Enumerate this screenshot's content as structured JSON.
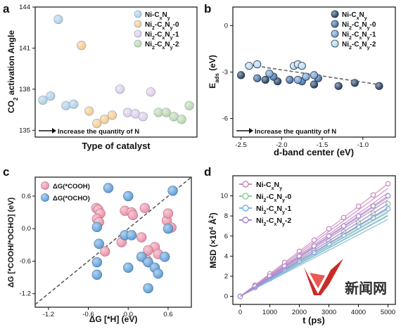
{
  "watermark": {
    "logo_text": "新闻网"
  },
  "colors": {
    "pa": [
      "#a8cde6",
      "#f5c887",
      "#dccbed",
      "#b7d7a8"
    ],
    "pb": [
      "#1d3a5c",
      "#3a67a3",
      "#6d9bd0",
      "#b6d6ef"
    ],
    "pc_cooh": "#e98fa6",
    "pc_ocho": "#5b9bd5",
    "pd": [
      "#d7a6cf",
      "#a8d8b0",
      "#98c8e8",
      "#b9a2d8"
    ]
  },
  "chart_data": [
    {
      "panel": "a",
      "type": "scatter",
      "xlabel": "Type of catalyst",
      "ylabel_parts": {
        "pre": "CO",
        "sub": "2",
        "post": " activation Angle"
      },
      "ylim": [
        134.5,
        144
      ],
      "yticks": [
        135,
        138,
        141,
        144
      ],
      "arrow_label": "Increase the quantity of N",
      "series": [
        {
          "name": "Ni-CxNy",
          "label_parts": [
            "Ni-C",
            "x",
            "N",
            "y",
            ""
          ],
          "x": [
            1,
            2,
            3,
            4,
            5
          ],
          "y": [
            137.2,
            137.5,
            143.1,
            136.8,
            136.9
          ]
        },
        {
          "name": "Ni2-CxNy-0",
          "label_parts": [
            "Ni",
            "2",
            "-C",
            "x",
            "N",
            "y",
            "-0"
          ],
          "x": [
            6,
            7,
            8,
            9,
            10
          ],
          "y": [
            141.2,
            136.4,
            135.5,
            135.8,
            136.1
          ]
        },
        {
          "name": "Ni2-CxNy-1",
          "label_parts": [
            "Ni",
            "2",
            "-C",
            "x",
            "N",
            "y",
            "-1"
          ],
          "x": [
            11,
            12,
            13,
            14,
            15
          ],
          "y": [
            138.0,
            136.3,
            136.2,
            136.0,
            137.8
          ]
        },
        {
          "name": "Ni2-CxNy-2",
          "label_parts": [
            "Ni",
            "2",
            "-C",
            "x",
            "N",
            "y",
            "-2"
          ],
          "x": [
            16,
            17,
            18,
            19,
            20
          ],
          "y": [
            136.3,
            136.3,
            136.0,
            135.8,
            136.8
          ]
        }
      ]
    },
    {
      "panel": "b",
      "type": "scatter",
      "xlabel": "d-band center (eV)",
      "ylabel_main": "E",
      "ylabel_sub": "ads",
      "ylabel_unit": " (eV)",
      "xlim": [
        -2.6,
        -0.6
      ],
      "ylim": [
        -7.2,
        1.2
      ],
      "xticks": [
        -2.5,
        -2.0,
        -1.5,
        -1.0
      ],
      "xtick_labels": [
        "-2.5",
        "-2.0",
        "-1.5",
        "-1.0"
      ],
      "yticks": [
        -6,
        -3,
        0
      ],
      "ytick_labels": [
        "-6",
        "-3",
        "0"
      ],
      "arrow_label": "Increase the quantity of N",
      "fit": {
        "x": [
          -2.45,
          -0.75
        ],
        "y": [
          -2.5,
          -3.85
        ]
      },
      "series": [
        {
          "name": "Ni-CxNy",
          "label_parts": [
            "Ni-C",
            "x",
            "N",
            "y",
            ""
          ],
          "x": [
            -2.5,
            -2.2,
            -2.05,
            -1.6,
            -1.3,
            -1.1,
            -0.8
          ],
          "y": [
            -3.2,
            -3.5,
            -3.6,
            -3.8,
            -3.9,
            -3.7,
            -3.9
          ]
        },
        {
          "name": "Ni2-CxNy-0",
          "label_parts": [
            "Ni",
            "2",
            "-C",
            "x",
            "N",
            "y",
            "-0"
          ],
          "x": [
            -2.3,
            -2.1,
            -1.9,
            -1.75,
            -1.55
          ],
          "y": [
            -3.4,
            -3.3,
            -3.5,
            -3.6,
            -3.4
          ]
        },
        {
          "name": "Ni2-CxNy-1",
          "label_parts": [
            "Ni",
            "2",
            "-C",
            "x",
            "N",
            "y",
            "-1"
          ],
          "x": [
            -2.15,
            -1.8,
            -1.7,
            -1.6
          ],
          "y": [
            -3.1,
            -3.5,
            -3.3,
            -3.2
          ]
        },
        {
          "name": "Ni2-CxNy-2",
          "label_parts": [
            "Ni",
            "2",
            "-C",
            "x",
            "N",
            "y",
            "-2"
          ],
          "x": [
            -2.4,
            -2.3,
            -1.85,
            -1.8,
            -1.75
          ],
          "y": [
            -2.6,
            -2.5,
            -2.6,
            -2.5,
            -2.6
          ]
        }
      ]
    },
    {
      "panel": "c",
      "type": "scatter",
      "xlabel": "ΔG [*H] (eV)",
      "ylabel": "ΔG [*COOH/*OCHO] (eV)",
      "xlim": [
        -1.4,
        0.95
      ],
      "ylim": [
        -1.45,
        0.95
      ],
      "xticks": [
        -1.2,
        -0.6,
        0.0,
        0.6
      ],
      "xtick_labels": [
        "-1.2",
        "-0.6",
        "0.0",
        "0.6"
      ],
      "yticks": [
        -1.2,
        -0.6,
        0.0,
        0.6
      ],
      "ytick_labels": [
        "-1.2",
        "-0.6",
        "0.0",
        "0.6"
      ],
      "series": [
        {
          "name": "ΔG(*COOH)",
          "x": [
            -0.48,
            -0.45,
            -0.42,
            -0.05,
            0.05,
            0.25,
            -0.47,
            -0.44,
            0.07,
            -0.35,
            0.28,
            -0.1,
            0.4,
            0.45,
            0.58,
            0.65,
            0.2,
            0.3,
            0.6
          ],
          "y": [
            0.38,
            0.35,
            0.28,
            0.33,
            0.3,
            0.38,
            0.18,
            0.12,
            0.25,
            -0.42,
            -0.58,
            -0.25,
            -0.34,
            -0.47,
            0.15,
            0.02,
            -0.16,
            -0.4,
            0.28
          ]
        },
        {
          "name": "ΔG(*OCHO)",
          "x": [
            -0.3,
            0.0,
            0.67,
            -0.47,
            -0.44,
            -0.05,
            0.05,
            0.0,
            0.6,
            -0.47,
            -0.47,
            0.2,
            0.3,
            0.4,
            0.55,
            0.45,
            0.3
          ],
          "y": [
            0.75,
            0.6,
            0.7,
            0.03,
            -0.28,
            -0.12,
            -0.12,
            -0.72,
            0.0,
            -0.62,
            -0.85,
            -0.52,
            -0.62,
            -0.72,
            -0.52,
            -0.83,
            -1.1
          ]
        }
      ]
    },
    {
      "panel": "d",
      "type": "line",
      "xlabel": "t (ps)",
      "ylabel_pre": "MSD (×10",
      "ylabel_sup": "4",
      "ylabel_post": " Å",
      "ylabel_sup2": "2",
      "ylabel_end": ")",
      "xlim": [
        -250,
        5250
      ],
      "ylim": [
        -0.8,
        12
      ],
      "xticks": [
        0,
        1000,
        2000,
        3000,
        4000,
        5000
      ],
      "yticks": [
        0,
        2,
        4,
        6,
        8,
        10
      ],
      "x": [
        0,
        500,
        1000,
        1500,
        2000,
        2500,
        3000,
        3500,
        4000,
        4500,
        5000
      ],
      "series": [
        {
          "name": "Ni-CxNy",
          "label_parts": [
            "Ni-C",
            "x",
            "N",
            "y",
            ""
          ],
          "final": 11.2
        },
        {
          "name": "Ni2-CxNy-0",
          "label_parts": [
            "Ni",
            "2",
            "-C",
            "x",
            "N",
            "y",
            "-0"
          ],
          "final": 9.2
        },
        {
          "name": "Ni2-CxNy-1",
          "label_parts": [
            "Ni",
            "2",
            "-C",
            "x",
            "N",
            "y",
            "-1"
          ],
          "final": 8.7
        },
        {
          "name": "Ni2-CxNy-2",
          "label_parts": [
            "Ni",
            "2",
            "-C",
            "x",
            "N",
            "y",
            "-2"
          ],
          "final": 10.0
        }
      ]
    }
  ]
}
